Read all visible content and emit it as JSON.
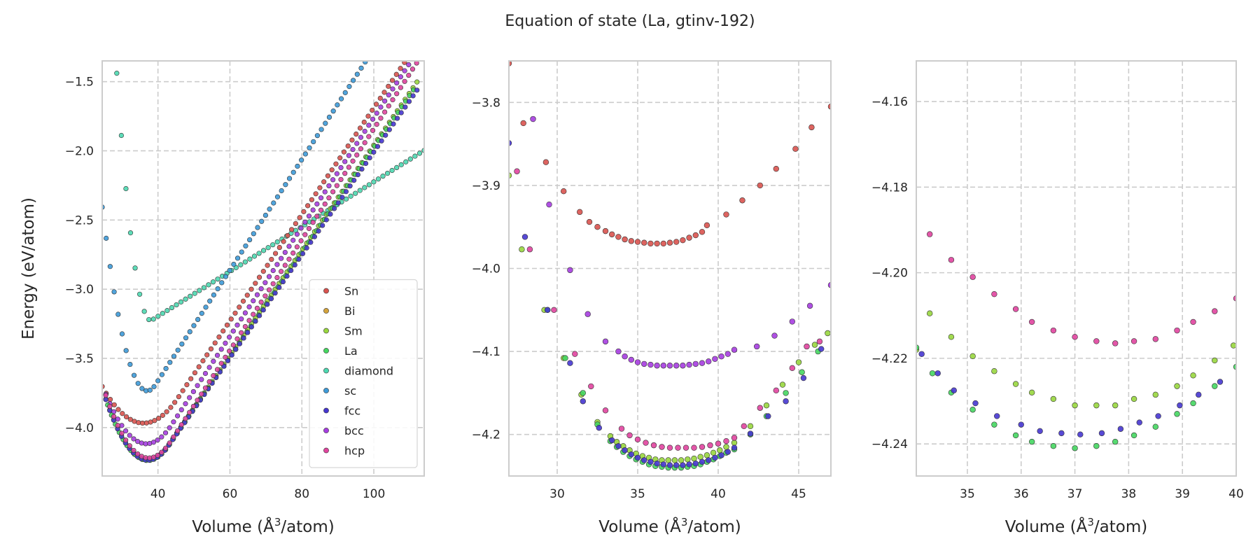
{
  "figure": {
    "title": "Equation of state (La, gtinv-192)"
  },
  "colors": {
    "Sn": "#d9534f",
    "Bi": "#d4a33b",
    "Sm": "#98d63e",
    "La": "#45d660",
    "diamond": "#4dd8b0",
    "sc": "#3d9ad8",
    "fcc": "#4636d0",
    "bcc": "#a63de0",
    "hcp": "#e0449e",
    "grid": "#cccccc",
    "spine": "#cccccc"
  },
  "chart_data": [
    {
      "type": "scatter",
      "panel": "left",
      "xlabel_main": "Volume (",
      "xlabel_unit": "Å",
      "xlabel_sup": "3",
      "xlabel_tail": "/atom)",
      "ylabel": "Energy (eV/atom)",
      "xlim": [
        24.5,
        114
      ],
      "ylim": [
        -4.35,
        -1.35
      ],
      "xticks": [
        40,
        60,
        80,
        100
      ],
      "yticks": [
        -4.0,
        -3.5,
        -3.0,
        -2.5,
        -2.0,
        -1.5
      ],
      "grid": true,
      "legend": {
        "placement": "lower-right",
        "entries": [
          "Sn",
          "Bi",
          "Sm",
          "La",
          "diamond",
          "sc",
          "fcc",
          "bcc",
          "hcp"
        ]
      },
      "series": [
        {
          "name": "diamond",
          "curve": {
            "V0": 38.0,
            "E0": -3.225,
            "B": 0.02,
            "lo": 26,
            "hi": 114,
            "n": 70,
            "lin": 0.0162
          }
        },
        {
          "name": "sc",
          "curve": {
            "V0": 37.0,
            "E0": -3.735,
            "B": 0.0085,
            "lo": 24.5,
            "hi": 112,
            "n": 80,
            "lin": 0.04
          }
        },
        {
          "name": "Sn",
          "curve": {
            "V0": 36.0,
            "E0": -3.968,
            "B": 0.002,
            "lo": 24.5,
            "hi": 113,
            "n": 80,
            "lin": 0.0385
          }
        },
        {
          "name": "bcc",
          "curve": {
            "V0": 36.8,
            "E0": -4.117,
            "B": 0.0028,
            "lo": 25.5,
            "hi": 113,
            "n": 80,
            "lin": 0.0395
          }
        },
        {
          "name": "Sm",
          "curve": {
            "V0": 37.2,
            "E0": -4.232,
            "B": 0.0032,
            "lo": 25.5,
            "hi": 112,
            "n": 80,
            "lin": 0.038
          }
        },
        {
          "name": "La",
          "curve": {
            "V0": 37.2,
            "E0": -4.238,
            "B": 0.0032,
            "lo": 26,
            "hi": 111,
            "n": 80,
            "lin": 0.0378
          }
        },
        {
          "name": "fcc",
          "curve": {
            "V0": 37.2,
            "E0": -4.236,
            "B": 0.0032,
            "lo": 25.5,
            "hi": 112,
            "n": 80,
            "lin": 0.0372
          }
        },
        {
          "name": "hcp",
          "curve": {
            "V0": 37.4,
            "E0": -4.22,
            "B": 0.0032,
            "lo": 25.5,
            "hi": 113,
            "n": 80,
            "lin": 0.04
          }
        }
      ]
    },
    {
      "type": "scatter",
      "panel": "middle",
      "xlabel_main": "Volume (",
      "xlabel_unit": "Å",
      "xlabel_sup": "3",
      "xlabel_tail": "/atom)",
      "xlim": [
        27,
        47
      ],
      "ylim": [
        -4.25,
        -3.75
      ],
      "xticks": [
        30,
        35,
        40,
        45
      ],
      "yticks": [
        -4.2,
        -4.1,
        -4.0,
        -3.9,
        -3.8
      ],
      "grid": true,
      "series": [
        {
          "name": "Sn",
          "x": [
            27.0,
            27.9,
            29.3,
            30.4,
            31.4,
            32.0,
            32.5,
            33.0,
            33.4,
            33.8,
            34.2,
            34.6,
            35.0,
            35.4,
            35.8,
            36.2,
            36.6,
            37.0,
            37.4,
            37.8,
            38.2,
            38.6,
            39.0,
            39.3,
            40.5,
            41.5,
            42.6,
            43.6,
            44.8,
            45.8,
            47.0
          ],
          "y": [
            -3.753,
            -3.825,
            -3.872,
            -3.907,
            -3.932,
            -3.944,
            -3.95,
            -3.955,
            -3.959,
            -3.962,
            -3.965,
            -3.967,
            -3.968,
            -3.969,
            -3.97,
            -3.97,
            -3.97,
            -3.969,
            -3.968,
            -3.966,
            -3.963,
            -3.96,
            -3.956,
            -3.948,
            -3.935,
            -3.918,
            -3.9,
            -3.88,
            -3.856,
            -3.83,
            -3.805
          ]
        },
        {
          "name": "bcc",
          "x": [
            28.5,
            29.5,
            30.8,
            31.9,
            33.0,
            33.8,
            34.2,
            34.6,
            35.0,
            35.4,
            35.8,
            36.2,
            36.6,
            37.0,
            37.4,
            37.8,
            38.2,
            38.6,
            39.0,
            39.4,
            39.8,
            40.2,
            40.6,
            41.0,
            42.4,
            43.5,
            44.6,
            45.7,
            47.0
          ],
          "y": [
            -3.82,
            -3.923,
            -4.002,
            -4.055,
            -4.088,
            -4.1,
            -4.106,
            -4.11,
            -4.113,
            -4.115,
            -4.116,
            -4.117,
            -4.117,
            -4.117,
            -4.117,
            -4.117,
            -4.116,
            -4.115,
            -4.114,
            -4.112,
            -4.109,
            -4.106,
            -4.103,
            -4.098,
            -4.094,
            -4.081,
            -4.064,
            -4.045,
            -4.02
          ]
        },
        {
          "name": "Sm",
          "x": [
            27.0,
            27.8,
            29.2,
            30.4,
            31.5,
            32.5,
            33.3,
            33.7,
            34.1,
            34.5,
            34.9,
            35.3,
            35.7,
            36.1,
            36.5,
            36.9,
            37.3,
            37.7,
            38.1,
            38.5,
            38.9,
            39.3,
            39.7,
            40.1,
            40.5,
            41.0,
            42.0,
            43.0,
            44.0,
            45.0,
            46.0,
            46.8
          ],
          "y": [
            -3.888,
            -3.977,
            -4.05,
            -4.108,
            -4.152,
            -4.185,
            -4.202,
            -4.209,
            -4.214,
            -4.219,
            -4.223,
            -4.226,
            -4.228,
            -4.23,
            -4.231,
            -4.231,
            -4.231,
            -4.231,
            -4.23,
            -4.229,
            -4.227,
            -4.225,
            -4.222,
            -4.219,
            -4.215,
            -4.21,
            -4.19,
            -4.165,
            -4.14,
            -4.113,
            -4.092,
            -4.078
          ]
        },
        {
          "name": "La",
          "x": [
            29.4,
            30.5,
            31.6,
            32.5,
            33.3,
            33.7,
            34.1,
            34.5,
            34.9,
            35.3,
            35.7,
            36.1,
            36.5,
            36.9,
            37.3,
            37.7,
            38.1,
            38.5,
            38.9,
            39.3,
            39.7,
            40.1,
            40.5,
            41.0,
            42.0,
            43.0,
            44.2,
            45.2,
            46.2
          ],
          "y": [
            -4.05,
            -4.108,
            -4.15,
            -4.188,
            -4.208,
            -4.215,
            -4.221,
            -4.226,
            -4.23,
            -4.233,
            -4.236,
            -4.238,
            -4.239,
            -4.24,
            -4.24,
            -4.24,
            -4.239,
            -4.238,
            -4.236,
            -4.233,
            -4.23,
            -4.226,
            -4.222,
            -4.218,
            -4.2,
            -4.178,
            -4.15,
            -4.125,
            -4.1
          ]
        },
        {
          "name": "fcc",
          "x": [
            27.0,
            28.0,
            29.4,
            30.8,
            31.6,
            32.6,
            33.4,
            33.8,
            34.2,
            34.6,
            35.0,
            35.4,
            35.8,
            36.2,
            36.6,
            37.0,
            37.4,
            37.8,
            38.2,
            38.6,
            39.0,
            39.4,
            39.8,
            40.2,
            40.6,
            41.0,
            42.0,
            43.1,
            44.2,
            45.3,
            46.4
          ],
          "y": [
            -3.849,
            -3.962,
            -4.05,
            -4.114,
            -4.16,
            -4.192,
            -4.207,
            -4.214,
            -4.219,
            -4.224,
            -4.228,
            -4.231,
            -4.233,
            -4.235,
            -4.236,
            -4.237,
            -4.237,
            -4.237,
            -4.236,
            -4.235,
            -4.233,
            -4.231,
            -4.228,
            -4.225,
            -4.221,
            -4.216,
            -4.199,
            -4.178,
            -4.16,
            -4.132,
            -4.097
          ]
        },
        {
          "name": "hcp",
          "x": [
            27.5,
            28.3,
            29.8,
            31.1,
            32.1,
            33.0,
            34.0,
            34.5,
            35.0,
            35.5,
            36.0,
            36.5,
            37.0,
            37.5,
            38.0,
            38.5,
            39.0,
            39.5,
            40.0,
            40.5,
            41.0,
            41.6,
            42.6,
            43.6,
            44.6,
            45.5,
            46.3
          ],
          "y": [
            -3.883,
            -3.977,
            -4.05,
            -4.103,
            -4.142,
            -4.171,
            -4.193,
            -4.201,
            -4.206,
            -4.21,
            -4.213,
            -4.215,
            -4.216,
            -4.216,
            -4.216,
            -4.216,
            -4.215,
            -4.213,
            -4.211,
            -4.208,
            -4.204,
            -4.19,
            -4.168,
            -4.147,
            -4.12,
            -4.094,
            -4.088
          ]
        }
      ]
    },
    {
      "type": "scatter",
      "panel": "right",
      "xlabel_main": "Volume (",
      "xlabel_unit": "Å",
      "xlabel_sup": "3",
      "xlabel_tail": "/atom)",
      "xlim": [
        34.05,
        40.0
      ],
      "ylim": [
        -4.2475,
        -4.1505
      ],
      "xticks": [
        35,
        36,
        37,
        38,
        39,
        40
      ],
      "yticks": [
        -4.24,
        -4.22,
        -4.2,
        -4.18,
        -4.16
      ],
      "grid": true,
      "series": [
        {
          "name": "hcp",
          "x": [
            34.3,
            34.7,
            35.1,
            35.5,
            35.9,
            36.2,
            36.6,
            37.0,
            37.4,
            37.75,
            38.1,
            38.5,
            38.9,
            39.2,
            39.6,
            40.0
          ],
          "y": [
            -4.191,
            -4.197,
            -4.201,
            -4.205,
            -4.2085,
            -4.2115,
            -4.2135,
            -4.215,
            -4.216,
            -4.2165,
            -4.216,
            -4.2155,
            -4.2135,
            -4.2115,
            -4.209,
            -4.206
          ]
        },
        {
          "name": "Sm",
          "x": [
            34.05,
            34.3,
            34.7,
            35.1,
            35.5,
            35.9,
            36.2,
            36.6,
            37.0,
            37.4,
            37.75,
            38.1,
            38.5,
            38.9,
            39.2,
            39.6,
            39.95
          ],
          "y": [
            -4.218,
            -4.2095,
            -4.215,
            -4.2195,
            -4.223,
            -4.226,
            -4.228,
            -4.2295,
            -4.231,
            -4.231,
            -4.231,
            -4.2295,
            -4.2285,
            -4.2265,
            -4.224,
            -4.2205,
            -4.217
          ]
        },
        {
          "name": "La",
          "x": [
            34.05,
            34.35,
            34.7,
            35.1,
            35.5,
            35.9,
            36.2,
            36.6,
            37.0,
            37.4,
            37.75,
            38.1,
            38.5,
            38.9,
            39.2,
            39.6,
            40.0
          ],
          "y": [
            -4.2175,
            -4.2235,
            -4.228,
            -4.232,
            -4.2355,
            -4.238,
            -4.2395,
            -4.2405,
            -4.241,
            -4.2405,
            -4.2395,
            -4.238,
            -4.236,
            -4.233,
            -4.2305,
            -4.2265,
            -4.222
          ]
        },
        {
          "name": "fcc",
          "x": [
            34.15,
            34.45,
            34.75,
            35.15,
            35.55,
            36.0,
            36.35,
            36.75,
            37.1,
            37.5,
            37.85,
            38.2,
            38.55,
            38.95,
            39.3,
            39.7
          ],
          "y": [
            -4.219,
            -4.2235,
            -4.2275,
            -4.2305,
            -4.2335,
            -4.2355,
            -4.237,
            -4.2375,
            -4.2378,
            -4.2375,
            -4.2365,
            -4.235,
            -4.2335,
            -4.231,
            -4.2285,
            -4.2255
          ]
        }
      ]
    }
  ]
}
